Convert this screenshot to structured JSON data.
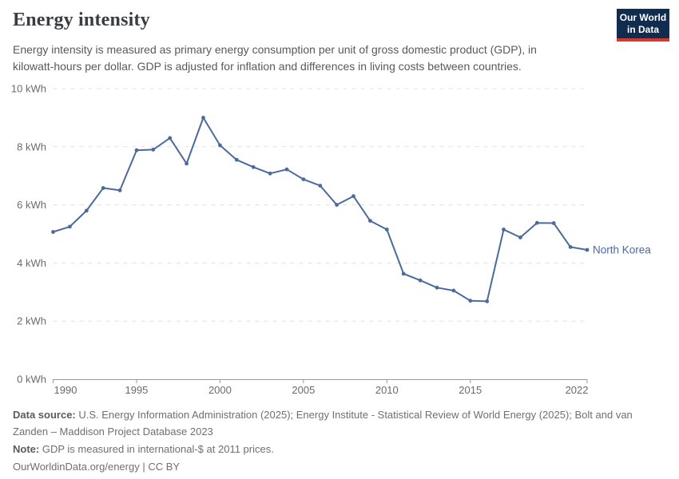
{
  "header": {
    "title": "Energy intensity",
    "subtitle_lines": [
      "Energy intensity is measured as primary energy consumption per unit of gross domestic product (GDP), in",
      "kilowatt-hours per dollar. GDP is adjusted for inflation and differences in living costs between countries."
    ],
    "logo": {
      "line1": "Our World",
      "line2": "in Data",
      "bg_color": "#102d50",
      "bar_color": "#d6382d"
    }
  },
  "chart_data": {
    "type": "line",
    "title": "Energy intensity",
    "xlabel": "",
    "ylabel": "kWh per dollar",
    "x": [
      1990,
      1991,
      1992,
      1993,
      1994,
      1995,
      1996,
      1997,
      1998,
      1999,
      2000,
      2001,
      2002,
      2003,
      2004,
      2005,
      2006,
      2007,
      2008,
      2009,
      2010,
      2011,
      2012,
      2013,
      2014,
      2015,
      2016,
      2017,
      2018,
      2019,
      2020,
      2021,
      2022
    ],
    "series": [
      {
        "name": "North Korea",
        "color": "#4c6a9c",
        "values": [
          5.07,
          5.25,
          5.8,
          6.58,
          6.5,
          7.88,
          7.9,
          8.3,
          7.42,
          9.0,
          8.05,
          7.55,
          7.3,
          7.08,
          7.22,
          6.88,
          6.66,
          6.0,
          6.3,
          5.45,
          5.15,
          3.63,
          3.4,
          3.15,
          3.05,
          2.7,
          2.68,
          5.15,
          4.88,
          5.38,
          5.37,
          4.55,
          4.45
        ]
      }
    ],
    "xlim": [
      1990,
      2022
    ],
    "ylim": [
      0,
      10
    ],
    "x_ticks": [
      1990,
      1995,
      2000,
      2005,
      2010,
      2015,
      2022
    ],
    "y_ticks": [
      0,
      2,
      4,
      6,
      8,
      10
    ],
    "y_tick_suffix": " kWh",
    "grid": true,
    "legend_position": "end-of-line-label"
  },
  "footer": {
    "source_label": "Data source:",
    "source_text": " U.S. Energy Information Administration (2025); Energy Institute - Statistical Review of World Energy (2025); Bolt and van Zanden – Maddison Project Database 2023",
    "note_label": "Note:",
    "note_text": " GDP is measured in international-$ at 2011 prices.",
    "attribution": "OurWorldinData.org/energy | CC BY"
  }
}
